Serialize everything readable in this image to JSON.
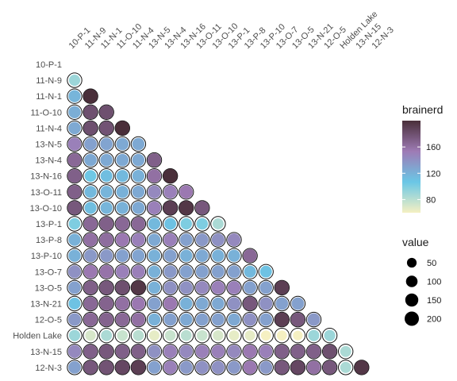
{
  "chart_data": {
    "type": "heatmap",
    "title": "",
    "xlabel": "",
    "ylabel": "",
    "labels": [
      "10-P-1",
      "11-N-9",
      "11-N-1",
      "11-O-10",
      "11-N-4",
      "13-N-5",
      "13-N-4",
      "13-N-16",
      "13-O-11",
      "13-O-10",
      "13-P-1",
      "13-P-8",
      "13-P-10",
      "13-O-7",
      "13-O-5",
      "13-N-21",
      "12-O-5",
      "Holden Lake",
      "13-N-15",
      "12-N-3"
    ],
    "value_matrix": [
      [],
      [
        90
      ],
      [
        118,
        200
      ],
      [
        122,
        180,
        180
      ],
      [
        125,
        180,
        178,
        200
      ],
      [
        150,
        130,
        128,
        125,
        125
      ],
      [
        165,
        125,
        125,
        125,
        125,
        170
      ],
      [
        170,
        105,
        112,
        115,
        120,
        160,
        200
      ],
      [
        170,
        115,
        118,
        120,
        125,
        145,
        150,
        155
      ],
      [
        175,
        112,
        118,
        120,
        125,
        150,
        190,
        195,
        175
      ],
      [
        100,
        165,
        170,
        165,
        165,
        115,
        110,
        100,
        100,
        85
      ],
      [
        120,
        160,
        162,
        155,
        150,
        125,
        150,
        130,
        135,
        140,
        145
      ],
      [
        120,
        135,
        135,
        130,
        128,
        120,
        130,
        120,
        125,
        120,
        120,
        165
      ],
      [
        140,
        155,
        158,
        150,
        150,
        120,
        135,
        130,
        130,
        130,
        130,
        115,
        110
      ],
      [
        130,
        170,
        175,
        180,
        195,
        120,
        140,
        140,
        145,
        150,
        150,
        130,
        130,
        190
      ],
      [
        110,
        165,
        168,
        160,
        155,
        130,
        155,
        120,
        125,
        125,
        140,
        175,
        140,
        130,
        130
      ],
      [
        135,
        165,
        168,
        165,
        160,
        120,
        130,
        125,
        130,
        130,
        125,
        140,
        130,
        190,
        175,
        135
      ],
      [
        90,
        70,
        85,
        75,
        80,
        65,
        75,
        80,
        75,
        70,
        65,
        65,
        60,
        60,
        50,
        90,
        90
      ],
      [
        145,
        170,
        175,
        170,
        170,
        140,
        150,
        145,
        150,
        150,
        145,
        155,
        150,
        170,
        170,
        170,
        180,
        85
      ],
      [
        130,
        175,
        178,
        185,
        190,
        130,
        150,
        135,
        140,
        140,
        135,
        155,
        135,
        175,
        185,
        160,
        175,
        85,
        195
      ]
    ],
    "color_scale": {
      "name": "brainerd",
      "stops": [
        "#f5f0c2",
        "#6ac7e6",
        "#9e7bb5",
        "#4a2f3a"
      ],
      "domain": [
        60,
        200
      ],
      "legend_ticks": [
        80,
        120,
        160
      ]
    },
    "size_scale": {
      "name": "value",
      "legend_values": [
        50,
        100,
        150,
        200
      ]
    },
    "grid": false
  }
}
